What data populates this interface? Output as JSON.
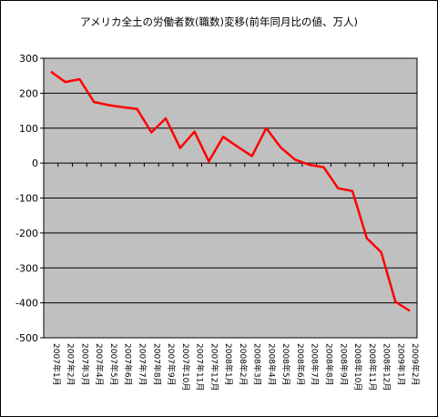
{
  "chart_data": {
    "type": "line",
    "title": "アメリカ全土の労働者数(職数)変移(前年同月比の値、万人)",
    "xlabel": "",
    "ylabel": "",
    "ylim": [
      -500,
      300
    ],
    "yticks": [
      300,
      200,
      100,
      0,
      -100,
      -200,
      -300,
      -400,
      -500
    ],
    "grid": true,
    "legend": "none",
    "categories": [
      "2007年1月",
      "2007年2月",
      "2007年3月",
      "2007年4月",
      "2007年5月",
      "2007年6月",
      "2007年7月",
      "2007年8月",
      "2007年9月",
      "2007年10月",
      "2007年11月",
      "2007年12月",
      "2008年1月",
      "2008年2月",
      "2008年3月",
      "2008年4月",
      "2008年5月",
      "2008年6月",
      "2008年7月",
      "2008年8月",
      "2008年9月",
      "2008年10月",
      "2008年11月",
      "2008年12月",
      "2009年1月",
      "2009年2月"
    ],
    "series": [
      {
        "values": [
          262,
          232,
          240,
          175,
          166,
          160,
          155,
          88,
          128,
          43,
          90,
          5,
          75,
          47,
          20,
          100,
          45,
          10,
          -5,
          -12,
          -72,
          -80,
          -215,
          -255,
          -397,
          -423
        ]
      }
    ]
  },
  "colors": {
    "plot_background": "#c0c0c0",
    "line": "#ff0000",
    "grid": "#000000",
    "frame": "#000000"
  }
}
